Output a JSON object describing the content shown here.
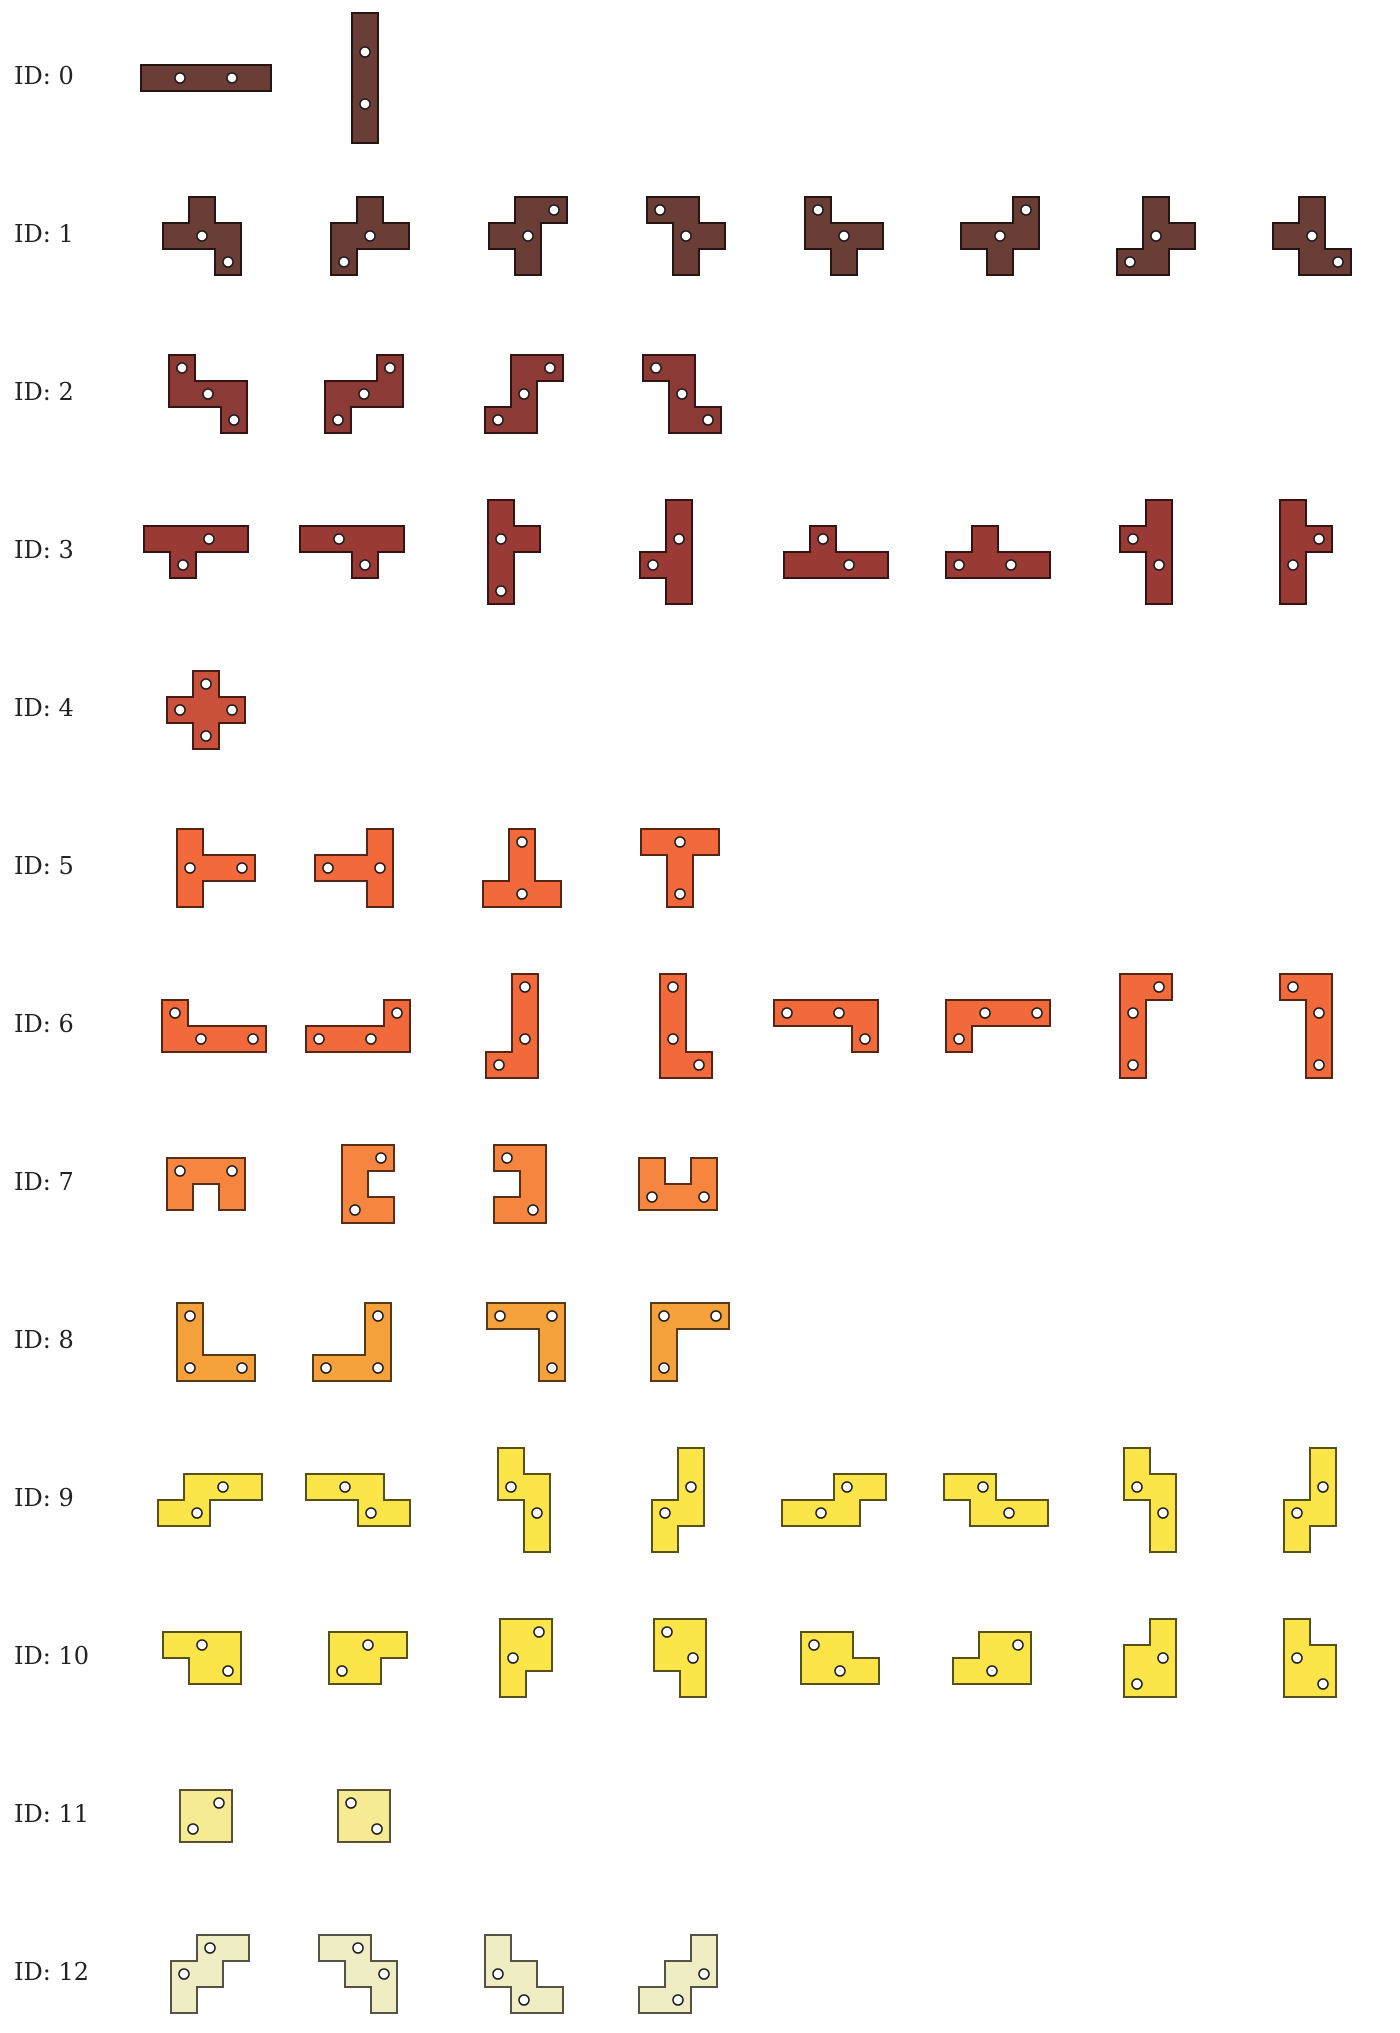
{
  "rows": [
    {
      "label": "ID: 0",
      "color": "#6b3d37",
      "variants": 2
    },
    {
      "label": "ID: 1",
      "color": "#6b3d37",
      "variants": 8
    },
    {
      "label": "ID: 2",
      "color": "#8b3a35",
      "variants": 4
    },
    {
      "label": "ID: 3",
      "color": "#9a3a35",
      "variants": 8
    },
    {
      "label": "ID: 4",
      "color": "#c9503b",
      "variants": 1
    },
    {
      "label": "ID: 5",
      "color": "#f26a3b",
      "variants": 4
    },
    {
      "label": "ID: 6",
      "color": "#f26a3b",
      "variants": 8
    },
    {
      "label": "ID: 7",
      "color": "#f68540",
      "variants": 4
    },
    {
      "label": "ID: 8",
      "color": "#f5a23c",
      "variants": 4
    },
    {
      "label": "ID: 9",
      "color": "#fbe549",
      "variants": 8
    },
    {
      "label": "ID: 10",
      "color": "#fbe549",
      "variants": 8
    },
    {
      "label": "ID: 11",
      "color": "#f6ea93",
      "variants": 2
    },
    {
      "label": "ID: 12",
      "color": "#efedc4",
      "variants": 4
    }
  ]
}
